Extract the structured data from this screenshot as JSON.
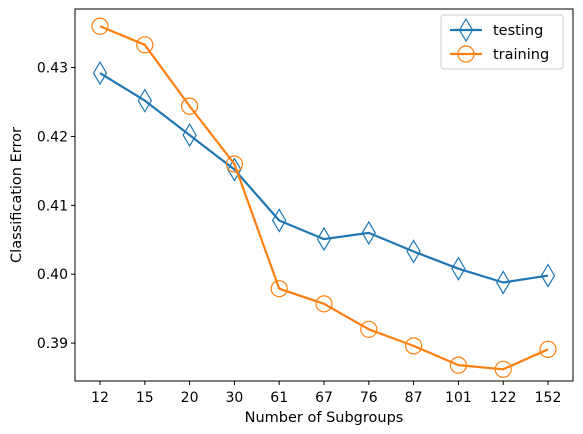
{
  "chart_data": {
    "type": "line",
    "categories": [
      "12",
      "15",
      "20",
      "30",
      "61",
      "67",
      "76",
      "87",
      "101",
      "122",
      "152"
    ],
    "series": [
      {
        "name": "testing",
        "color": "#1f77b4",
        "marker": "thin-diamond",
        "values": [
          0.4292,
          0.4252,
          0.4202,
          0.4152,
          0.4078,
          0.4051,
          0.406,
          0.4033,
          0.4008,
          0.3988,
          0.3998
        ]
      },
      {
        "name": "training",
        "color": "#ff7f0e",
        "marker": "circle",
        "values": [
          0.436,
          0.4333,
          0.4244,
          0.416,
          0.3979,
          0.3957,
          0.392,
          0.3896,
          0.3868,
          0.3862,
          0.3891
        ]
      }
    ],
    "xlabel": "Number of Subgroups",
    "ylabel": "Classification Error",
    "ylim": [
      0.3845,
      0.4385
    ],
    "yticks": [
      0.39,
      0.4,
      0.41,
      0.42,
      0.43
    ],
    "ytick_labels": [
      "0.39",
      "0.40",
      "0.41",
      "0.42",
      "0.43"
    ],
    "grid": false,
    "legend_position": "top-right"
  }
}
